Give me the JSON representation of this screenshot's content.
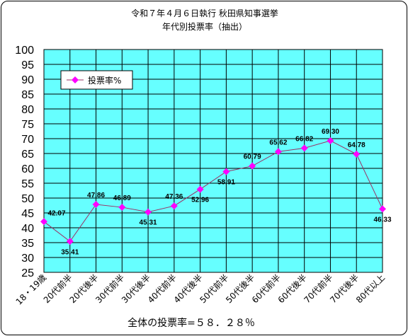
{
  "chart_data": {
    "type": "line",
    "title": "令和７年４月６日執行 秋田県知事選挙",
    "subtitle": "年代別投票率（抽出）",
    "categories": [
      "18・19歳",
      "20代前半",
      "20代後半",
      "30代前半",
      "30代後半",
      "40代前半",
      "40代後半",
      "50代前半",
      "50代後半",
      "60代前半",
      "60代後半",
      "70代前半",
      "70代後半",
      "80代以上"
    ],
    "series": [
      {
        "name": "投票率%",
        "values": [
          42.07,
          35.41,
          47.86,
          46.89,
          45.31,
          47.36,
          52.96,
          58.91,
          60.79,
          65.62,
          66.82,
          69.3,
          64.78,
          46.33
        ],
        "color": "#ff00ff",
        "line_color": "#993366"
      }
    ],
    "data_labels": [
      "42.07",
      "35.41",
      "47.86",
      "46.89",
      "45.31",
      "47.36",
      "52.96",
      "58.91",
      "60.79",
      "65.62",
      "66.82",
      "69.30",
      "64.78",
      "46.33"
    ],
    "ylim": [
      25,
      100
    ],
    "yticks": [
      25,
      30,
      35,
      40,
      45,
      50,
      55,
      60,
      65,
      70,
      75,
      80,
      85,
      90,
      95,
      100
    ],
    "grid": true,
    "plot_background": "#66ffff",
    "legend": "top-left",
    "footer": "全体の投票率=５８．２８％"
  }
}
